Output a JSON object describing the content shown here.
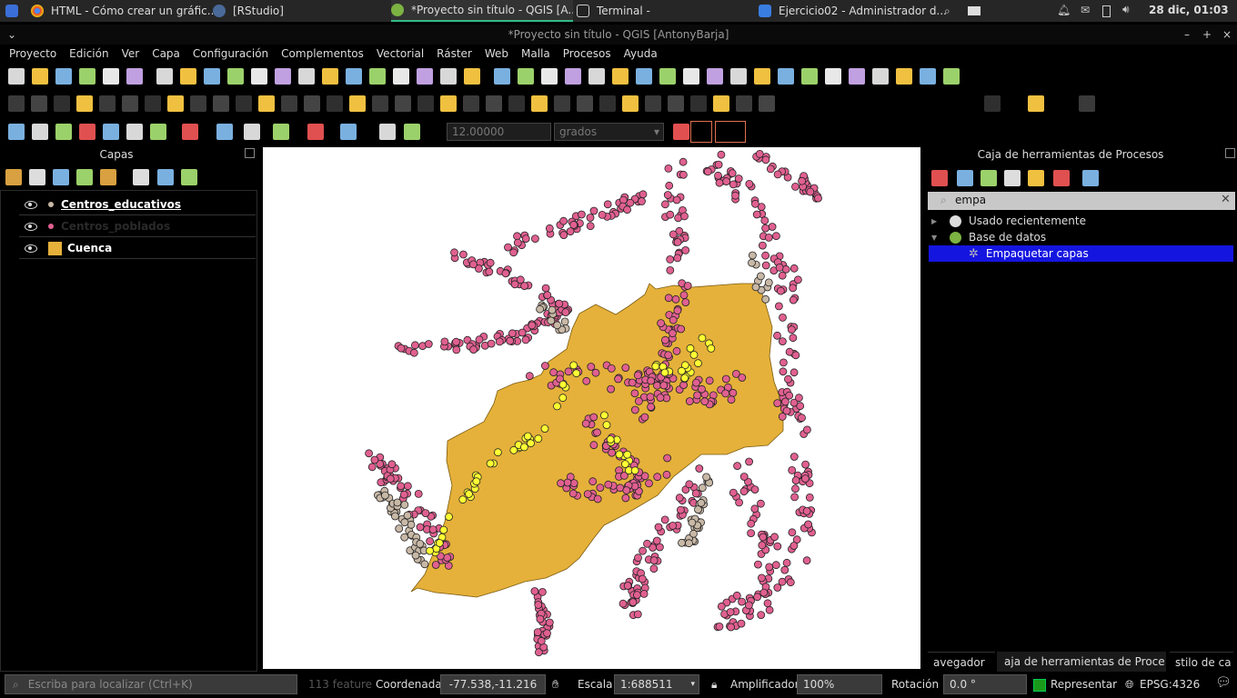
{
  "taskbar": {
    "tasks": [
      {
        "label": "HTML - Cómo crear un gráfic..."
      },
      {
        "label": "[RStudio]"
      },
      {
        "label": "*Proyecto sin título - QGIS [A..."
      },
      {
        "label": "Terminal -"
      },
      {
        "label": "Ejercicio02 - Administrador d..."
      }
    ],
    "clock": "28 dic, 01:03"
  },
  "window": {
    "title": "*Proyecto sin título - QGIS [AntonyBarja]"
  },
  "menu": [
    "Proyecto",
    "Edición",
    "Ver",
    "Capa",
    "Configuración",
    "Complementos",
    "Vectorial",
    "Ráster",
    "Web",
    "Malla",
    "Procesos",
    "Ayuda"
  ],
  "snapping": {
    "tolerance": "12.00000",
    "unit": "grados"
  },
  "layers_panel": {
    "title": "Capas",
    "layers": [
      {
        "name": "Centros_educativos",
        "color": "#c8b8a6"
      },
      {
        "name": "Centros_poblados",
        "color": "#e06090"
      },
      {
        "name": "Cuenca",
        "color": "#e5b13a"
      }
    ]
  },
  "processing": {
    "title": "Caja de herramientas de Procesos",
    "search_value": "empa",
    "tree": [
      {
        "label": "Usado recientemente"
      },
      {
        "label": "Base de datos"
      },
      {
        "label": "Empaquetar capas"
      }
    ]
  },
  "tabs": [
    "avegador",
    "aja de herramientas de Proce",
    "stilo de ca"
  ],
  "status": {
    "locator_placeholder": "Escriba para localizar (Ctrl+K)",
    "feature_hint": "113 feature",
    "coord_label": "Coordenada",
    "coord_value": "-77.538,-11.216",
    "scale_label": "Escala",
    "scale_value": "1:688511",
    "magnifier_label": "Amplificador",
    "magnifier_value": "100%",
    "rotation_label": "Rotación",
    "rotation_value": "0.0 °",
    "render_label": "Representar",
    "crs": "EPSG:4326"
  },
  "colors": {
    "basin": "#e5b13a",
    "populated": "#e06090",
    "schools": "#c8b8a6",
    "highlight": "#ffff33",
    "selected_row": "#1515e0"
  }
}
